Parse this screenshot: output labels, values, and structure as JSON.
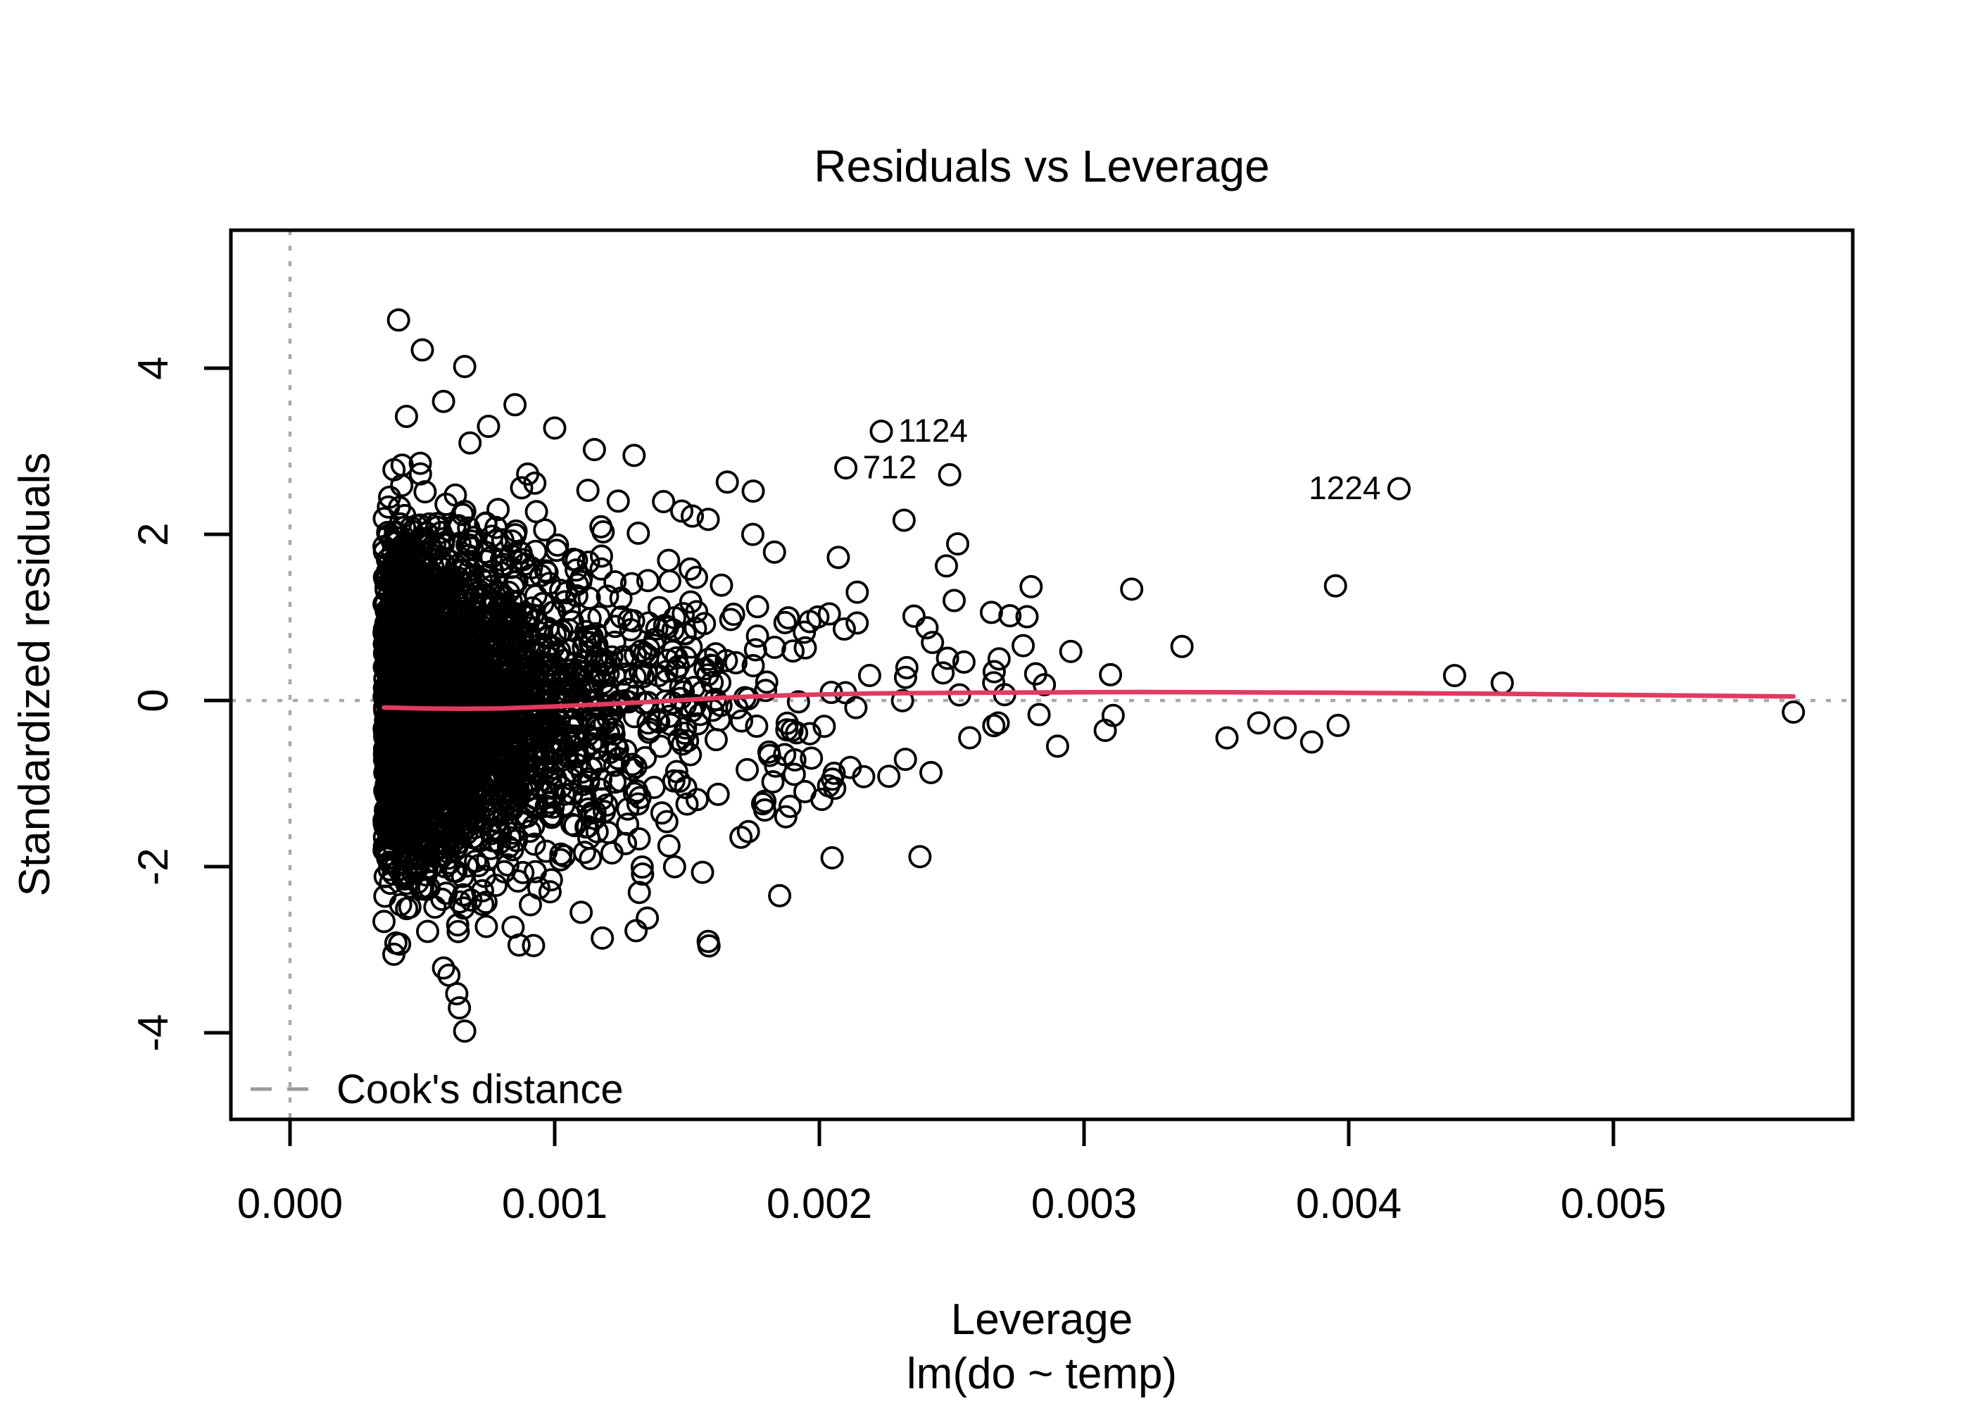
{
  "chart_data": {
    "type": "scatter",
    "title": "Residuals vs Leverage",
    "xlabel": "Leverage",
    "xlabel_sub": "lm(do ~ temp)",
    "ylabel": "Standardized residuals",
    "x_ticks": [
      {
        "value": 0.0,
        "label": "0.000"
      },
      {
        "value": 0.001,
        "label": "0.001"
      },
      {
        "value": 0.002,
        "label": "0.002"
      },
      {
        "value": 0.003,
        "label": "0.003"
      },
      {
        "value": 0.004,
        "label": "0.004"
      },
      {
        "value": 0.005,
        "label": "0.005"
      }
    ],
    "y_ticks": [
      {
        "value": -4,
        "label": "-4"
      },
      {
        "value": -2,
        "label": "-2"
      },
      {
        "value": 0,
        "label": "0"
      },
      {
        "value": 2,
        "label": "2"
      },
      {
        "value": 4,
        "label": "4"
      }
    ],
    "xlim": [
      -0.00022,
      0.0059
    ],
    "ylim": [
      -5.05,
      5.66
    ],
    "grid": false,
    "legend": {
      "label": "Cook's distance",
      "position": "bottom-left",
      "line_style": "dashed"
    },
    "colors": {
      "points": "#000000",
      "smooth_line": "#e23a5f",
      "reference_dotted": "#a9a9a9",
      "legend_gray": "#9b9b9b",
      "axis": "#000000"
    },
    "reference_lines": {
      "horizontal_y": 0,
      "vertical_x": 0,
      "style": "dotted"
    },
    "labeled_points": [
      {
        "id": "1124",
        "leverage": 0.002234,
        "residual": 3.24,
        "label_side": "right"
      },
      {
        "id": "712",
        "leverage": 0.0021,
        "residual": 2.8,
        "label_side": "right"
      },
      {
        "id": "1224",
        "leverage": 0.00419,
        "residual": 2.55,
        "label_side": "left"
      }
    ],
    "feature_points": [
      {
        "leverage": 0.00041,
        "residual": 4.58
      },
      {
        "leverage": 0.0005,
        "residual": 4.22
      },
      {
        "leverage": 0.00066,
        "residual": 4.02
      },
      {
        "leverage": 0.00085,
        "residual": 3.56
      },
      {
        "leverage": 0.00058,
        "residual": 3.6
      },
      {
        "leverage": 0.00044,
        "residual": 3.42
      },
      {
        "leverage": 0.00075,
        "residual": 3.3
      },
      {
        "leverage": 0.001,
        "residual": 3.28
      },
      {
        "leverage": 0.00068,
        "residual": 3.1
      },
      {
        "leverage": 0.00115,
        "residual": 3.02
      },
      {
        "leverage": 0.0013,
        "residual": 2.95
      },
      {
        "leverage": 0.00175,
        "residual": 2.52
      },
      {
        "leverage": 0.00148,
        "residual": 2.28
      },
      {
        "leverage": 0.00124,
        "residual": 2.4
      },
      {
        "leverage": 0.00152,
        "residual": 2.22
      },
      {
        "leverage": 0.00158,
        "residual": 2.18
      },
      {
        "leverage": 0.0004,
        "residual": -2.92
      },
      {
        "leverage": 0.00058,
        "residual": -3.22
      },
      {
        "leverage": 0.00063,
        "residual": -3.53
      },
      {
        "leverage": 0.00064,
        "residual": -3.7
      },
      {
        "leverage": 0.00066,
        "residual": -3.98
      },
      {
        "leverage": 0.00092,
        "residual": -2.95
      },
      {
        "leverage": 0.00052,
        "residual": -2.78
      },
      {
        "leverage": 0.00118,
        "residual": -2.86
      },
      {
        "leverage": 0.00135,
        "residual": -2.62
      },
      {
        "leverage": 0.00158,
        "residual": -2.9
      },
      {
        "leverage": 0.00185,
        "residual": -2.35
      },
      {
        "leverage": 0.0011,
        "residual": -2.55
      },
      {
        "leverage": 0.00232,
        "residual": 2.17
      },
      {
        "leverage": 0.00248,
        "residual": 1.62
      },
      {
        "leverage": 0.00238,
        "residual": -1.88
      },
      {
        "leverage": 0.00265,
        "residual": 1.06
      },
      {
        "leverage": 0.00272,
        "residual": 1.02
      },
      {
        "leverage": 0.0028,
        "residual": 1.37
      },
      {
        "leverage": 0.00277,
        "residual": 0.66
      },
      {
        "leverage": 0.00295,
        "residual": 0.59
      },
      {
        "leverage": 0.00285,
        "residual": 0.19
      },
      {
        "leverage": 0.0027,
        "residual": 0.07
      },
      {
        "leverage": 0.00283,
        "residual": -0.17
      },
      {
        "leverage": 0.0029,
        "residual": -0.55
      },
      {
        "leverage": 0.00318,
        "residual": 1.34
      },
      {
        "leverage": 0.0031,
        "residual": 0.31
      },
      {
        "leverage": 0.00311,
        "residual": -0.18
      },
      {
        "leverage": 0.00308,
        "residual": -0.36
      },
      {
        "leverage": 0.00337,
        "residual": 0.65
      },
      {
        "leverage": 0.00354,
        "residual": -0.45
      },
      {
        "leverage": 0.00366,
        "residual": -0.27
      },
      {
        "leverage": 0.00376,
        "residual": -0.33
      },
      {
        "leverage": 0.00386,
        "residual": -0.5
      },
      {
        "leverage": 0.00396,
        "residual": -0.3
      },
      {
        "leverage": 0.00395,
        "residual": 1.38
      },
      {
        "leverage": 0.0044,
        "residual": 0.3
      },
      {
        "leverage": 0.00458,
        "residual": 0.21
      },
      {
        "leverage": 0.00568,
        "residual": -0.14
      }
    ],
    "smooth_line": {
      "color": "#e23a5f",
      "points": [
        [
          0.000355,
          -0.085
        ],
        [
          0.0005,
          -0.095
        ],
        [
          0.00065,
          -0.1
        ],
        [
          0.0008,
          -0.095
        ],
        [
          0.001,
          -0.072
        ],
        [
          0.0012,
          -0.042
        ],
        [
          0.0014,
          -0.01
        ],
        [
          0.0016,
          0.028
        ],
        [
          0.0018,
          0.055
        ],
        [
          0.002,
          0.072
        ],
        [
          0.0022,
          0.085
        ],
        [
          0.0025,
          0.092
        ],
        [
          0.0028,
          0.097
        ],
        [
          0.0032,
          0.102
        ],
        [
          0.0036,
          0.098
        ],
        [
          0.004,
          0.092
        ],
        [
          0.0045,
          0.082
        ],
        [
          0.005,
          0.068
        ],
        [
          0.00568,
          0.048
        ]
      ]
    },
    "cloud": {
      "seed": 42,
      "n": 2900,
      "lev_min": 0.000355,
      "lev_max": 0.0029,
      "mix_weight": 0.78,
      "exp_mean_1": 0.00026,
      "exp_mean_2": 0.00072,
      "sd_base": 1.02,
      "sd_slope": -60,
      "mean_base": -0.1,
      "mean_slope": 80,
      "res_clamp": 3.45
    }
  }
}
